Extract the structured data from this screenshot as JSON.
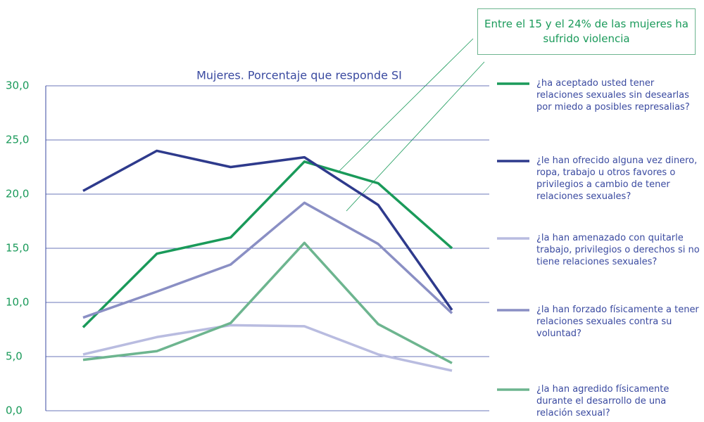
{
  "chart_data": {
    "type": "line",
    "title": "Mujeres. Porcentaje que responde SI",
    "annotation": "Entre el 15 y el 24% de las mujeres ha sufrido violencia",
    "categories": [
      null,
      null,
      null,
      null,
      null,
      null
    ],
    "ylim": [
      0,
      30
    ],
    "yticks": [
      {
        "value": 0,
        "label": "0,0"
      },
      {
        "value": 5,
        "label": "5,0"
      },
      {
        "value": 10,
        "label": "10,0"
      },
      {
        "value": 15,
        "label": "15,0"
      },
      {
        "value": 20,
        "label": "20,0"
      },
      {
        "value": 25,
        "label": "25,0"
      },
      {
        "value": 30,
        "label": "30,0"
      }
    ],
    "grid": true,
    "legend": "right",
    "series": [
      {
        "name": "¿ha aceptado usted tener relaciones sexuales sin desearlas por miedo a posibles represalias?",
        "color": "#1a9a5a",
        "values": [
          7.7,
          14.5,
          16.0,
          23.0,
          21.0,
          15.0
        ]
      },
      {
        "name": "¿le han ofrecido alguna vez dinero, ropa, trabajo u otros favores o privilegios a cambio de tener relaciones sexuales?",
        "color": "#2e3a8c",
        "values": [
          20.3,
          24.0,
          22.5,
          23.4,
          19.0,
          9.3
        ]
      },
      {
        "name": "¿la han amenazado con quitarle trabajo, privilegios o derechos si no tiene relaciones sexuales?",
        "color": "#b9bce0",
        "values": [
          5.2,
          6.8,
          7.9,
          7.8,
          5.2,
          3.7
        ]
      },
      {
        "name": "¿la han forzado físicamente a tener relaciones sexuales contra su voluntad?",
        "color": "#8a8fc4",
        "values": [
          8.6,
          11.0,
          13.5,
          19.2,
          15.4,
          9.0
        ]
      },
      {
        "name": "¿la han agredido físicamente durante el desarrollo de una relación sexual?",
        "color": "#6db58f",
        "values": [
          4.7,
          5.5,
          8.1,
          15.5,
          8.0,
          4.4
        ]
      }
    ]
  }
}
